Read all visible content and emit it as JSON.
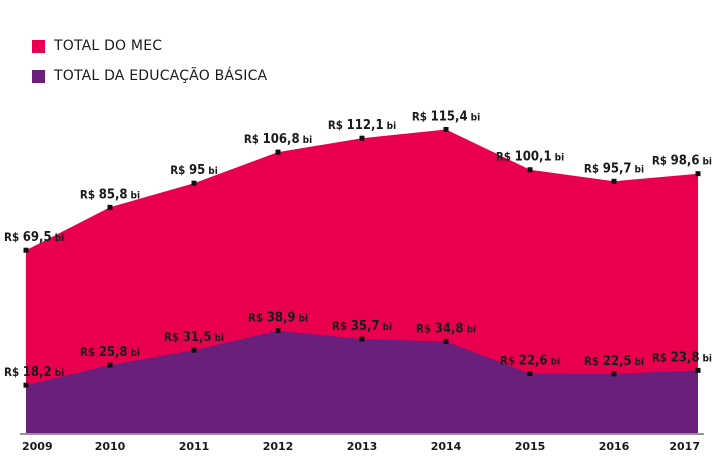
{
  "legend": [
    {
      "label": "TOTAL DO MEC",
      "color": "#e8004f"
    },
    {
      "label": "TOTAL DA EDUCAÇÃO BÁSICA",
      "color": "#6a1f7a"
    }
  ],
  "chart_data": {
    "type": "area",
    "x": [
      "2009",
      "2010",
      "2011",
      "2012",
      "2013",
      "2014",
      "2015",
      "2016",
      "2017"
    ],
    "prefix": "R$ ",
    "suffix": "bi",
    "series": [
      {
        "name": "TOTAL DO MEC",
        "color": "#e8004f",
        "values": [
          69.5,
          85.8,
          95,
          106.8,
          112.1,
          115.4,
          100.1,
          95.7,
          98.6
        ],
        "labels": [
          "69,5",
          "85,8",
          "95",
          "106,8",
          "112,1",
          "115,4",
          "100,1",
          "95,7",
          "98,6"
        ]
      },
      {
        "name": "TOTAL DA EDUCAÇÃO BÁSICA",
        "color": "#6a1f7a",
        "values": [
          18.2,
          25.8,
          31.5,
          38.9,
          35.7,
          34.8,
          22.6,
          22.5,
          23.8
        ],
        "labels": [
          "18,2",
          "25,8",
          "31,5",
          "38,9",
          "35,7",
          "34,8",
          "22,6",
          "22,5",
          "23,8"
        ]
      }
    ],
    "ylim": [
      0,
      120
    ],
    "grid": false,
    "legend_position": "top-left"
  }
}
